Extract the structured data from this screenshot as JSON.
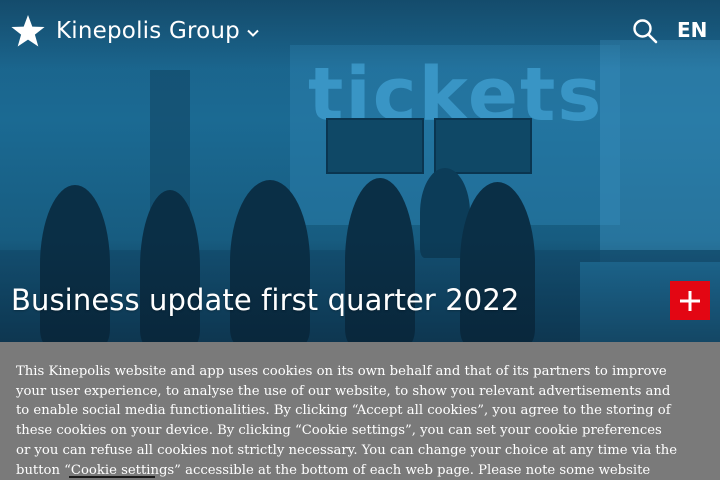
{
  "header": {
    "brand_name": "Kinepolis Group",
    "brand_logo_icon": "star-icon",
    "brand_menu_icon": "chevron-down-icon",
    "search_icon": "search-icon",
    "language": "EN"
  },
  "hero": {
    "title": "Business update first quarter 2022",
    "background_sign": "tickets",
    "expand_icon": "plus-icon",
    "expand_color": "#e30613"
  },
  "cookie_banner": {
    "text": "This Kinepolis website and app uses cookies on its own behalf and that of its partners to improve your user experience, to analyse the use of our website, to show you relevant advertisements and to enable social media functionalities. By clicking “Accept all cookies”, you agree to the storing of these cookies on your device. By clicking “Cookie settings”, you can set your cookie preferences or you can refuse all cookies not strictly necessary. You can change your choice at any time via the button “Cookie settings” accessible at the bottom of each web page. Please note some website functions may not work if you disable",
    "background_color": "#7a7a7a"
  }
}
